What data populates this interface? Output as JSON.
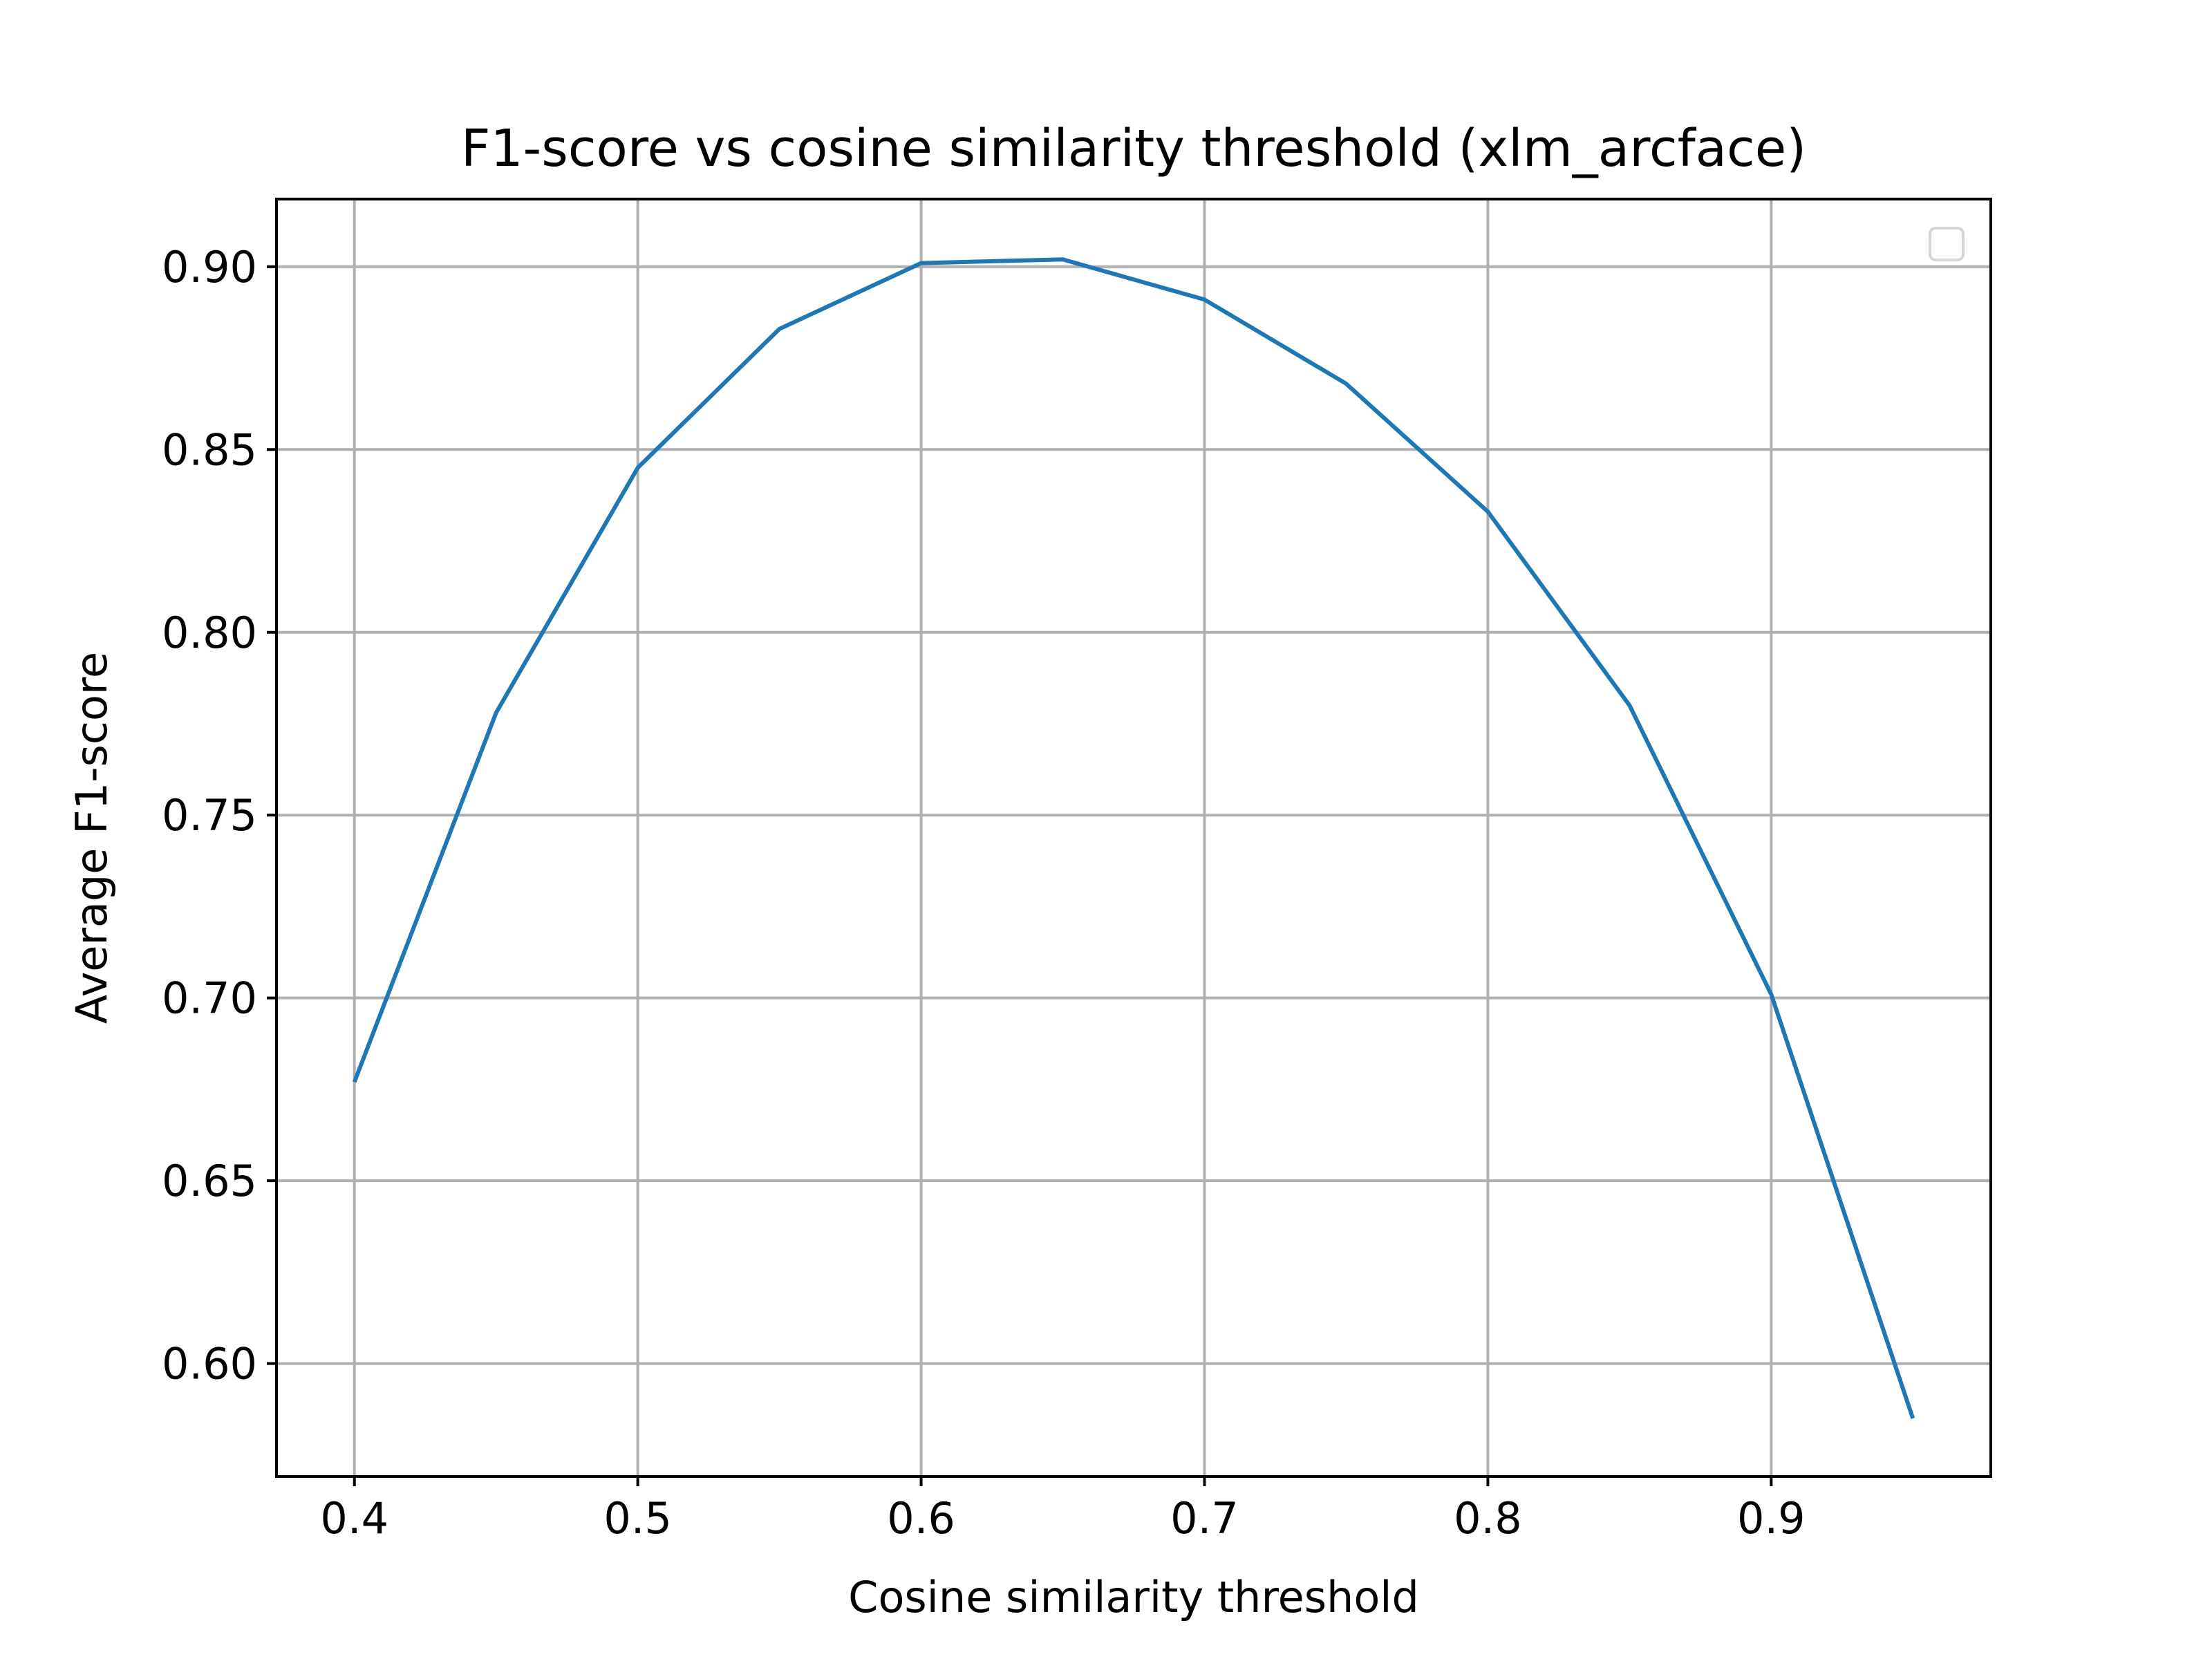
{
  "chart_data": {
    "type": "line",
    "title": "F1-score vs cosine similarity threshold (xlm_arcface)",
    "xlabel": "Cosine similarity threshold",
    "ylabel": "Average F1-score",
    "x": [
      0.4,
      0.45,
      0.5,
      0.55,
      0.6,
      0.65,
      0.7,
      0.75,
      0.8,
      0.85,
      0.9,
      0.95
    ],
    "series": [
      {
        "values": [
          0.677,
          0.778,
          0.845,
          0.883,
          0.901,
          0.902,
          0.891,
          0.868,
          0.833,
          0.78,
          0.701,
          0.585
        ],
        "color": "#1f77b4"
      }
    ],
    "xticks": [
      0.4,
      0.5,
      0.6,
      0.7,
      0.8,
      0.9
    ],
    "xtick_labels": [
      "0.4",
      "0.5",
      "0.6",
      "0.7",
      "0.8",
      "0.9"
    ],
    "yticks": [
      0.6,
      0.65,
      0.7,
      0.75,
      0.8,
      0.85,
      0.9
    ],
    "ytick_labels": [
      "0.60",
      "0.65",
      "0.70",
      "0.75",
      "0.80",
      "0.85",
      "0.90"
    ],
    "xlim": [
      0.3725,
      0.9775
    ],
    "ylim": [
      0.5691,
      0.9185
    ],
    "grid": true,
    "legend": "top-right",
    "legend_entries": []
  }
}
